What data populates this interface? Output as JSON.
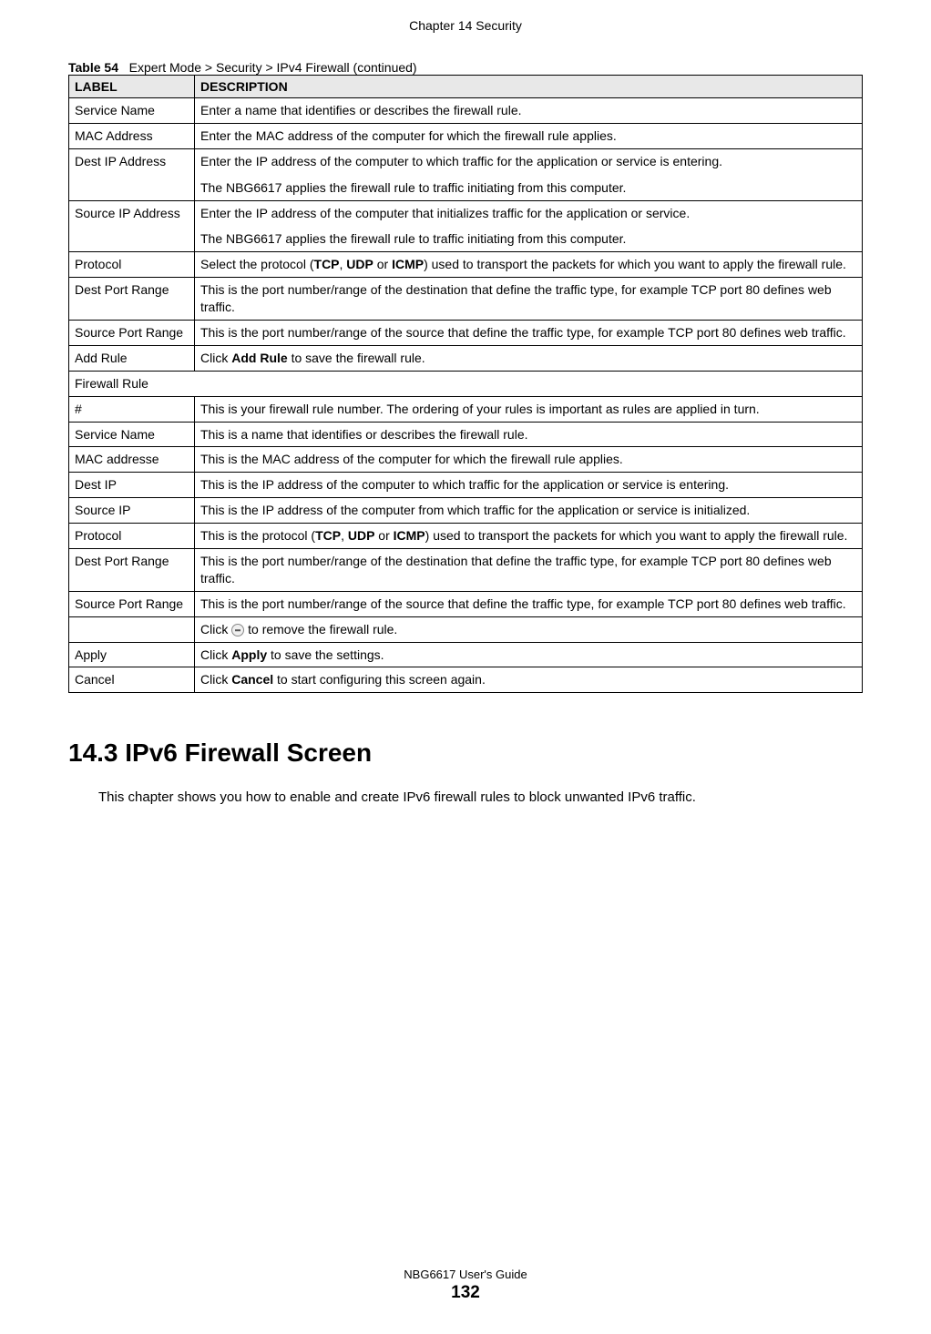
{
  "chapter_header": "Chapter 14 Security",
  "table_caption_prefix": "Table 54",
  "table_caption_text": "Expert Mode > Security > IPv4 Firewall  (continued)",
  "headers": {
    "label": "LABEL",
    "description": "DESCRIPTION"
  },
  "rows": [
    {
      "label": "Service Name",
      "desc_parts": [
        {
          "type": "text",
          "text": "Enter a name that identifies or describes the firewall rule."
        }
      ]
    },
    {
      "label": "MAC Address",
      "desc_parts": [
        {
          "type": "text",
          "text": "Enter the MAC address of the computer for which the firewall rule applies."
        }
      ]
    },
    {
      "label": "Dest IP Address",
      "desc_parts": [
        {
          "type": "text",
          "text": "Enter the IP address of the computer to which traffic for the application or service is entering."
        },
        {
          "type": "para",
          "text": "The NBG6617 applies the firewall rule to traffic initiating from this computer."
        }
      ]
    },
    {
      "label": "Source IP Address",
      "desc_parts": [
        {
          "type": "text",
          "text": "Enter the IP address of the computer that initializes traffic for the application or service."
        },
        {
          "type": "para",
          "text": "The NBG6617 applies the firewall rule to traffic initiating from this computer."
        }
      ]
    },
    {
      "label": "Protocol",
      "desc_parts": [
        {
          "type": "text",
          "text": "Select the protocol ("
        },
        {
          "type": "bold",
          "text": "TCP"
        },
        {
          "type": "text",
          "text": ", "
        },
        {
          "type": "bold",
          "text": "UDP"
        },
        {
          "type": "text",
          "text": " or "
        },
        {
          "type": "bold",
          "text": "ICMP"
        },
        {
          "type": "text",
          "text": ") used to transport the packets for which you want to apply the firewall rule."
        }
      ]
    },
    {
      "label": "Dest Port Range",
      "desc_parts": [
        {
          "type": "text",
          "text": "This is the port number/range of the destination that define the traffic type, for example TCP port 80 defines web traffic."
        }
      ]
    },
    {
      "label": "Source Port Range",
      "desc_parts": [
        {
          "type": "text",
          "text": "This is the port number/range of the source that define the traffic type, for example TCP port 80 defines web traffic."
        }
      ]
    },
    {
      "label": "Add Rule",
      "desc_parts": [
        {
          "type": "text",
          "text": "Click "
        },
        {
          "type": "bold",
          "text": "Add Rule"
        },
        {
          "type": "text",
          "text": " to save the firewall rule."
        }
      ]
    },
    {
      "label": "Firewall Rule",
      "desc_parts": [],
      "colspan": 2
    },
    {
      "label": "#",
      "desc_parts": [
        {
          "type": "text",
          "text": "This is your firewall rule number. The ordering of your rules is important as rules are applied in turn."
        }
      ]
    },
    {
      "label": "Service Name",
      "desc_parts": [
        {
          "type": "text",
          "text": "This is a name that identifies or describes the firewall rule."
        }
      ]
    },
    {
      "label": "MAC addresse",
      "desc_parts": [
        {
          "type": "text",
          "text": "This is the MAC address of the computer for which the firewall rule applies."
        }
      ]
    },
    {
      "label": "Dest IP",
      "desc_parts": [
        {
          "type": "text",
          "text": "This is the IP address of the computer to which traffic for the application or service is entering."
        }
      ]
    },
    {
      "label": "Source IP",
      "desc_parts": [
        {
          "type": "text",
          "text": "This is the IP address of the computer from which traffic for the application or service is initialized."
        }
      ]
    },
    {
      "label": "Protocol",
      "desc_parts": [
        {
          "type": "text",
          "text": "This is the protocol ("
        },
        {
          "type": "bold",
          "text": "TCP"
        },
        {
          "type": "text",
          "text": ", "
        },
        {
          "type": "bold",
          "text": "UDP"
        },
        {
          "type": "text",
          "text": " or "
        },
        {
          "type": "bold",
          "text": "ICMP"
        },
        {
          "type": "text",
          "text": ") used to transport the packets for which you want to apply the firewall rule."
        }
      ]
    },
    {
      "label": "Dest Port Range",
      "desc_parts": [
        {
          "type": "text",
          "text": "This is the port number/range of the destination that define the traffic type, for example TCP port 80 defines web traffic."
        }
      ]
    },
    {
      "label": "Source Port Range",
      "desc_parts": [
        {
          "type": "text",
          "text": "This is the port number/range of the source that define the traffic type, for example TCP port 80 defines web traffic."
        }
      ]
    },
    {
      "label": "",
      "desc_parts": [
        {
          "type": "text",
          "text": "Click "
        },
        {
          "type": "icon",
          "name": "minus-icon"
        },
        {
          "type": "text",
          "text": " to remove the firewall rule."
        }
      ]
    },
    {
      "label": "Apply",
      "desc_parts": [
        {
          "type": "text",
          "text": "Click "
        },
        {
          "type": "bold",
          "text": "Apply"
        },
        {
          "type": "text",
          "text": " to save the settings."
        }
      ]
    },
    {
      "label": "Cancel",
      "desc_parts": [
        {
          "type": "text",
          "text": "Click "
        },
        {
          "type": "bold",
          "text": "Cancel"
        },
        {
          "type": "text",
          "text": " to start configuring this screen again."
        }
      ]
    }
  ],
  "section": {
    "heading": "14.3  IPv6 Firewall Screen",
    "text": "This chapter shows you how to enable and create IPv6 firewall rules to block unwanted IPv6 traffic."
  },
  "footer": {
    "guide": "NBG6617 User's Guide",
    "page": "132"
  }
}
